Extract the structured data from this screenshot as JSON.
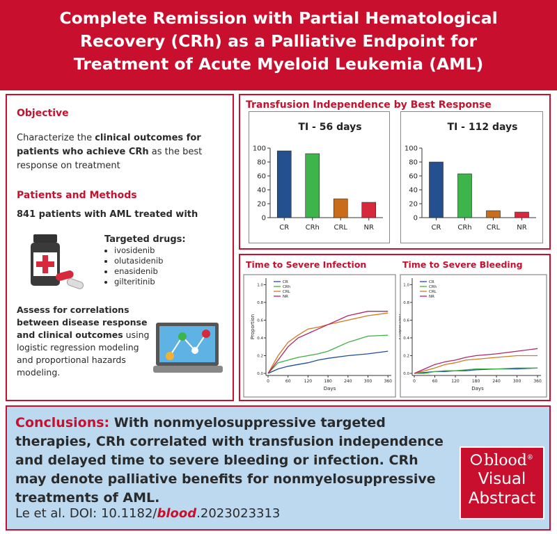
{
  "header": {
    "title": "Complete Remission with Partial Hematological Recovery (CRh) as a Palliative Endpoint for Treatment of Acute Myeloid Leukemia (AML)"
  },
  "left_panel": {
    "objective_heading": "Objective",
    "objective_parts": [
      "Characterize the ",
      "clinical outcomes for patients who achieve CRh",
      " as the best response on treatment"
    ],
    "methods_heading": "Patients and Methods",
    "patients": "841 patients with AML treated with",
    "drugs_heading": "Targeted drugs:",
    "drugs": [
      "ivosidenib",
      "olutasidenib",
      "enasidenib",
      "gilteritinib"
    ],
    "assess_parts": [
      "Assess for correlations between disease response and clinical outcomes",
      " using logistic regression modeling and proportional hazards modeling."
    ]
  },
  "transfusion_panel": {
    "title": "Transfusion Independence by Best Response"
  },
  "chart_data": [
    {
      "type": "bar",
      "title": "TI - 56 days",
      "categories": [
        "CR",
        "CRh",
        "CRL",
        "NR"
      ],
      "values": [
        96,
        92,
        27,
        22
      ],
      "colors": [
        "#24508f",
        "#3db54a",
        "#c96d1a",
        "#d6293b"
      ],
      "ylim": [
        0,
        100
      ],
      "yticks": [
        0,
        20,
        40,
        60,
        80,
        100
      ],
      "grid": false
    },
    {
      "type": "bar",
      "title": "TI - 112 days",
      "categories": [
        "CR",
        "CRh",
        "CRL",
        "NR"
      ],
      "values": [
        80,
        63,
        10,
        8
      ],
      "colors": [
        "#24508f",
        "#3db54a",
        "#c96d1a",
        "#d6293b"
      ],
      "ylim": [
        0,
        100
      ],
      "yticks": [
        0,
        20,
        40,
        60,
        80,
        100
      ],
      "grid": false
    },
    {
      "type": "line",
      "title": "Time to Severe Infection",
      "x_label": "Days",
      "y_label": "Proportion",
      "x": [
        0,
        30,
        60,
        90,
        120,
        150,
        180,
        240,
        300,
        360
      ],
      "series": [
        {
          "name": "CR",
          "color": "#1f4e9a",
          "values": [
            0,
            0.05,
            0.08,
            0.1,
            0.12,
            0.15,
            0.17,
            0.2,
            0.22,
            0.25
          ]
        },
        {
          "name": "CRh",
          "color": "#3cb043",
          "values": [
            0,
            0.12,
            0.15,
            0.18,
            0.2,
            0.22,
            0.25,
            0.35,
            0.42,
            0.43
          ]
        },
        {
          "name": "CRL",
          "color": "#d07a1a",
          "values": [
            0,
            0.2,
            0.35,
            0.43,
            0.5,
            0.52,
            0.55,
            0.6,
            0.65,
            0.68
          ]
        },
        {
          "name": "NR",
          "color": "#b0246c",
          "values": [
            0,
            0.15,
            0.3,
            0.4,
            0.45,
            0.5,
            0.55,
            0.65,
            0.7,
            0.7
          ]
        }
      ],
      "xlim": [
        0,
        370
      ],
      "ylim": [
        0,
        1.05
      ],
      "xticks": [
        0,
        60,
        120,
        180,
        240,
        300,
        360
      ],
      "yticks": [
        {
          "value": 0,
          "label": "0.0"
        },
        0.2,
        0.4,
        0.6,
        0.8,
        {
          "value": 1,
          "label": "1.0"
        }
      ],
      "legend": "upper left",
      "grid": false
    },
    {
      "type": "line",
      "title": "Time to Severe Bleeding",
      "x_label": "Days",
      "y_label": "Proportion",
      "x": [
        0,
        30,
        60,
        90,
        120,
        150,
        180,
        240,
        300,
        360
      ],
      "series": [
        {
          "name": "CR",
          "color": "#1f4e9a",
          "values": [
            0,
            0.01,
            0.02,
            0.02,
            0.03,
            0.03,
            0.04,
            0.05,
            0.05,
            0.06
          ]
        },
        {
          "name": "CRh",
          "color": "#3cb043",
          "values": [
            0,
            0,
            0.02,
            0.03,
            0.03,
            0.04,
            0.05,
            0.05,
            0.06,
            0.06
          ]
        },
        {
          "name": "CRL",
          "color": "#d07a1a",
          "values": [
            0,
            0.03,
            0.06,
            0.1,
            0.12,
            0.15,
            0.16,
            0.18,
            0.2,
            0.2
          ]
        },
        {
          "name": "NR",
          "color": "#b0246c",
          "values": [
            0,
            0.05,
            0.1,
            0.13,
            0.15,
            0.18,
            0.2,
            0.22,
            0.25,
            0.28
          ]
        }
      ],
      "xlim": [
        0,
        370
      ],
      "ylim": [
        0,
        1.05
      ],
      "xticks": [
        0,
        60,
        120,
        180,
        240,
        300,
        360
      ],
      "yticks": [
        {
          "value": 0,
          "label": "0.0"
        },
        0.2,
        0.4,
        0.6,
        0.8,
        {
          "value": 1,
          "label": "1.0"
        }
      ],
      "legend": "upper left",
      "grid": false
    }
  ],
  "conclusions": {
    "label": "Conclusions:",
    "text": " With nonmyelosuppressive targeted therapies, CRh correlated with transfusion independence and delayed time to severe bleeding or infection. CRh may denote palliative benefits for nonmyelosuppressive treatments of AML.",
    "citation_parts": [
      "Le et al. DOI: 10.1182/",
      "blood",
      ".2023023313"
    ]
  },
  "logo": {
    "brand": "blood",
    "mark": "®",
    "line1": "Visual",
    "line2": "Abstract"
  }
}
